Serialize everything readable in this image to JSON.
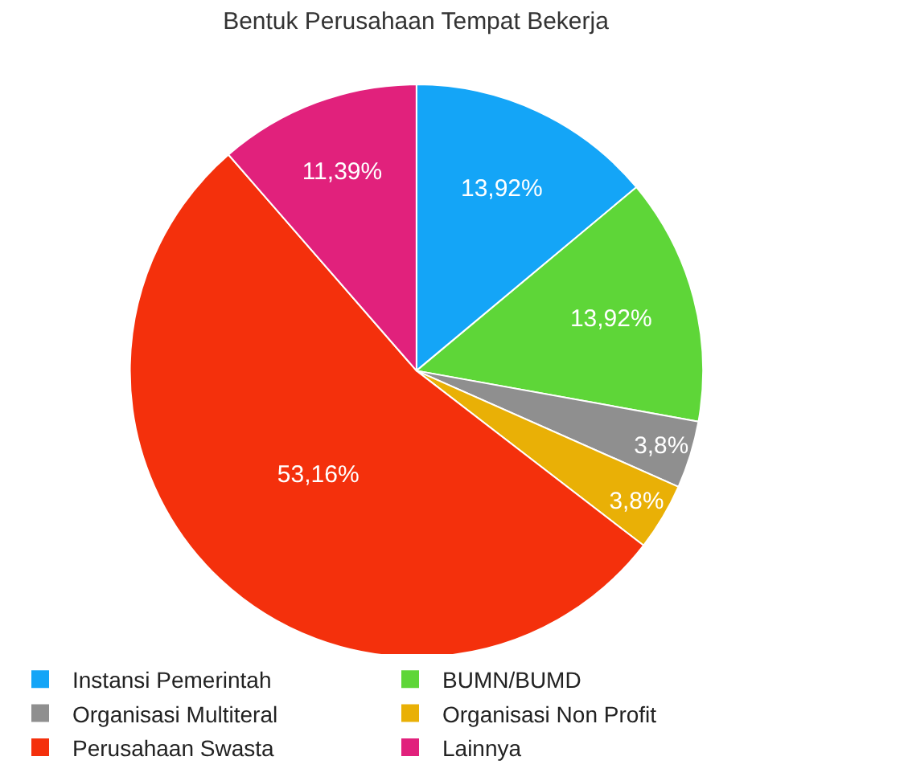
{
  "chart_data": {
    "type": "pie",
    "title": "Bentuk Perusahaan Tempat Bekerja",
    "categories": [
      "Instansi Pemerintah",
      "BUMN/BUMD",
      "Organisasi Multiteral",
      "Organisasi Non Profit",
      "Perusahaan Swasta",
      "Lainnya"
    ],
    "values": [
      13.92,
      13.92,
      3.8,
      3.8,
      53.16,
      11.39
    ],
    "value_labels": [
      "13,92%",
      "13,92%",
      "3,8%",
      "3,8%",
      "53,16%",
      "11,39%"
    ],
    "colors": [
      "#14a5f7",
      "#5ed638",
      "#8f8f8f",
      "#e9b006",
      "#f4300c",
      "#e1217c"
    ],
    "legend": "bottom"
  }
}
